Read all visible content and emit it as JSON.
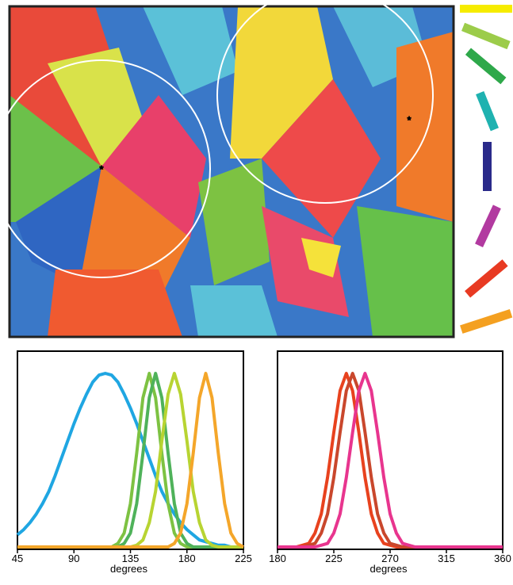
{
  "chart_data": [
    {
      "type": "line",
      "x_label": "degrees",
      "x": [
        45,
        50,
        55,
        60,
        65,
        70,
        75,
        80,
        85,
        90,
        95,
        100,
        105,
        110,
        115,
        120,
        125,
        130,
        135,
        140,
        145,
        150,
        155,
        160,
        165,
        170,
        175,
        180,
        185,
        190,
        195,
        200,
        205,
        210,
        215,
        220,
        225
      ],
      "xlim": [
        45,
        225
      ],
      "xticks": [
        45,
        90,
        135,
        180,
        225
      ],
      "ylim": [
        0,
        1
      ],
      "series": [
        {
          "color": "#1fa6e2",
          "values": [
            0.07,
            0.1,
            0.14,
            0.19,
            0.25,
            0.32,
            0.41,
            0.51,
            0.61,
            0.71,
            0.8,
            0.88,
            0.95,
            0.99,
            1,
            0.99,
            0.95,
            0.88,
            0.8,
            0.71,
            0.61,
            0.51,
            0.41,
            0.32,
            0.25,
            0.19,
            0.14,
            0.1,
            0.07,
            0.04,
            0.03,
            0.02,
            0.01,
            0.01,
            0,
            0,
            0
          ]
        },
        {
          "color": "#7dc242",
          "values": [
            0,
            0,
            0,
            0,
            0,
            0,
            0,
            0,
            0,
            0,
            0,
            0,
            0,
            0,
            0,
            0,
            0.02,
            0.08,
            0.25,
            0.54,
            0.86,
            1,
            0.86,
            0.54,
            0.25,
            0.08,
            0.02,
            0,
            0,
            0,
            0,
            0,
            0,
            0,
            0,
            0,
            0
          ]
        },
        {
          "color": "#4fb25a",
          "values": [
            0,
            0,
            0,
            0,
            0,
            0,
            0,
            0,
            0,
            0,
            0,
            0,
            0,
            0,
            0,
            0,
            0,
            0.02,
            0.08,
            0.25,
            0.54,
            0.86,
            1,
            0.86,
            0.54,
            0.25,
            0.08,
            0.02,
            0,
            0,
            0,
            0,
            0,
            0,
            0,
            0,
            0
          ]
        },
        {
          "color": "#b8d432",
          "values": [
            0,
            0,
            0,
            0,
            0,
            0,
            0,
            0,
            0,
            0,
            0,
            0,
            0,
            0,
            0,
            0,
            0,
            0,
            0,
            0.01,
            0.04,
            0.14,
            0.32,
            0.61,
            0.88,
            1,
            0.88,
            0.61,
            0.32,
            0.14,
            0.04,
            0.01,
            0,
            0,
            0,
            0,
            0
          ]
        },
        {
          "color": "#f4a62a",
          "values": [
            0,
            0,
            0,
            0,
            0,
            0,
            0,
            0,
            0,
            0,
            0,
            0,
            0,
            0,
            0,
            0,
            0,
            0,
            0,
            0,
            0,
            0,
            0,
            0,
            0,
            0.02,
            0.08,
            0.25,
            0.54,
            0.86,
            1,
            0.86,
            0.54,
            0.25,
            0.08,
            0.02,
            0
          ]
        }
      ]
    },
    {
      "type": "line",
      "x_label": "degrees",
      "x": [
        180,
        185,
        190,
        195,
        200,
        205,
        210,
        215,
        220,
        225,
        230,
        235,
        240,
        245,
        250,
        255,
        260,
        265,
        270,
        275,
        280,
        285,
        290,
        295,
        300,
        305,
        310,
        315,
        320,
        325,
        330,
        335,
        340,
        345,
        350,
        355,
        360
      ],
      "xlim": [
        180,
        360
      ],
      "xticks": [
        180,
        225,
        270,
        315,
        360
      ],
      "ylim": [
        0,
        1
      ],
      "series": [
        {
          "color": "#e8421e",
          "values": [
            0,
            0,
            0,
            0,
            0.01,
            0.02,
            0.08,
            0.19,
            0.4,
            0.66,
            0.9,
            1,
            0.9,
            0.66,
            0.4,
            0.19,
            0.08,
            0.02,
            0.01,
            0,
            0,
            0,
            0,
            0,
            0,
            0,
            0,
            0,
            0,
            0,
            0,
            0,
            0,
            0,
            0,
            0,
            0
          ]
        },
        {
          "color": "#c9472c",
          "values": [
            0,
            0,
            0,
            0,
            0,
            0.01,
            0.02,
            0.08,
            0.19,
            0.4,
            0.66,
            0.9,
            1,
            0.9,
            0.66,
            0.4,
            0.19,
            0.08,
            0.02,
            0.01,
            0,
            0,
            0,
            0,
            0,
            0,
            0,
            0,
            0,
            0,
            0,
            0,
            0,
            0,
            0,
            0,
            0
          ]
        },
        {
          "color": "#e8358e",
          "values": [
            0,
            0,
            0,
            0,
            0,
            0,
            0,
            0.01,
            0.02,
            0.08,
            0.19,
            0.4,
            0.66,
            0.9,
            1,
            0.9,
            0.66,
            0.4,
            0.19,
            0.08,
            0.02,
            0.01,
            0,
            0,
            0,
            0,
            0,
            0,
            0,
            0,
            0,
            0,
            0,
            0,
            0,
            0,
            0
          ]
        }
      ]
    }
  ]
}
